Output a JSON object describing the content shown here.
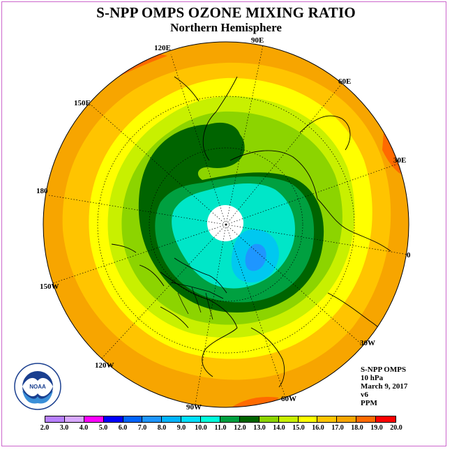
{
  "title": "S-NPP OMPS OZONE MIXING RATIO",
  "subtitle": "Northern Hemisphere",
  "lon_labels": [
    "90E",
    "60E",
    "30E",
    "0",
    "30W",
    "60W",
    "90W",
    "120W",
    "150W",
    "180",
    "150E",
    "120E"
  ],
  "info": {
    "instrument": "S-NPP OMPS",
    "level": "10 hPa",
    "date": "March 9, 2017",
    "version": "v6",
    "units": "PPM"
  },
  "logo": {
    "text": "NOAA"
  },
  "color_scale": {
    "ticks": [
      "2.0",
      "3.0",
      "4.0",
      "5.0",
      "6.0",
      "7.0",
      "8.0",
      "9.0",
      "10.0",
      "11.0",
      "12.0",
      "13.0",
      "14.0",
      "15.0",
      "16.0",
      "17.0",
      "18.0",
      "19.0",
      "20.0"
    ],
    "colors": [
      "#b880ff",
      "#d8a8ff",
      "#ff00ff",
      "#0000ff",
      "#0064ff",
      "#1e96ff",
      "#00b4ff",
      "#00e0ff",
      "#00ffdc",
      "#00a040",
      "#006400",
      "#8cd400",
      "#c8f000",
      "#ffff00",
      "#ffc400",
      "#f7a500",
      "#ff6a00",
      "#ff0000",
      "#8b4513"
    ]
  }
}
